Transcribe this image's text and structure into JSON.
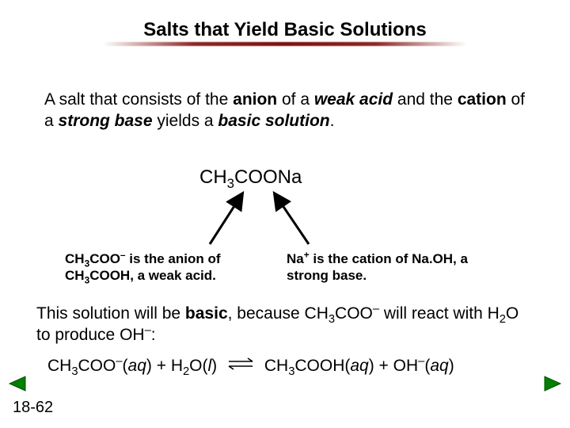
{
  "title": "Salts that Yield Basic Solutions",
  "p1_html": "A salt that consists of the <b>anion</b> of a <b><i>weak acid</i></b> and the <b>cation</b> of a <b><i>strong base</i></b> yields a <b><i>basic solution</i></b>.",
  "formula1_html": "CH<sub>3</sub>COONa",
  "label_left_html": "CH<sub>3</sub>COO<sup>–</sup> is the anion of CH<sub>3</sub>COOH, a weak acid.",
  "label_right_html": "Na<sup>+</sup> is the cation of Na.OH, a strong base.",
  "p2_html": "This solution will be <b>basic</b>, because CH<sub>3</sub>COO<sup>–</sup> will react with H<sub>2</sub>O to produce OH<sup>–</sup>:",
  "eq_left_html": "CH<sub>3</sub>COO<sup>–</sup>(<i>aq</i>) + H<sub>2</sub>O(<i>l</i>)",
  "eq_right_html": "CH<sub>3</sub>COOH(<i>aq</i>) + OH<sup>–</sup>(<i>aq</i>)",
  "page_number": "18-62",
  "colors": {
    "nav_fill": "#008000",
    "nav_stroke": "#004d00",
    "arrow_stroke": "#000000",
    "underline_color": "#6e0000"
  },
  "font_sizes": {
    "title": 24,
    "body": 21,
    "formula": 24,
    "labels": 17,
    "pagenum": 20
  }
}
